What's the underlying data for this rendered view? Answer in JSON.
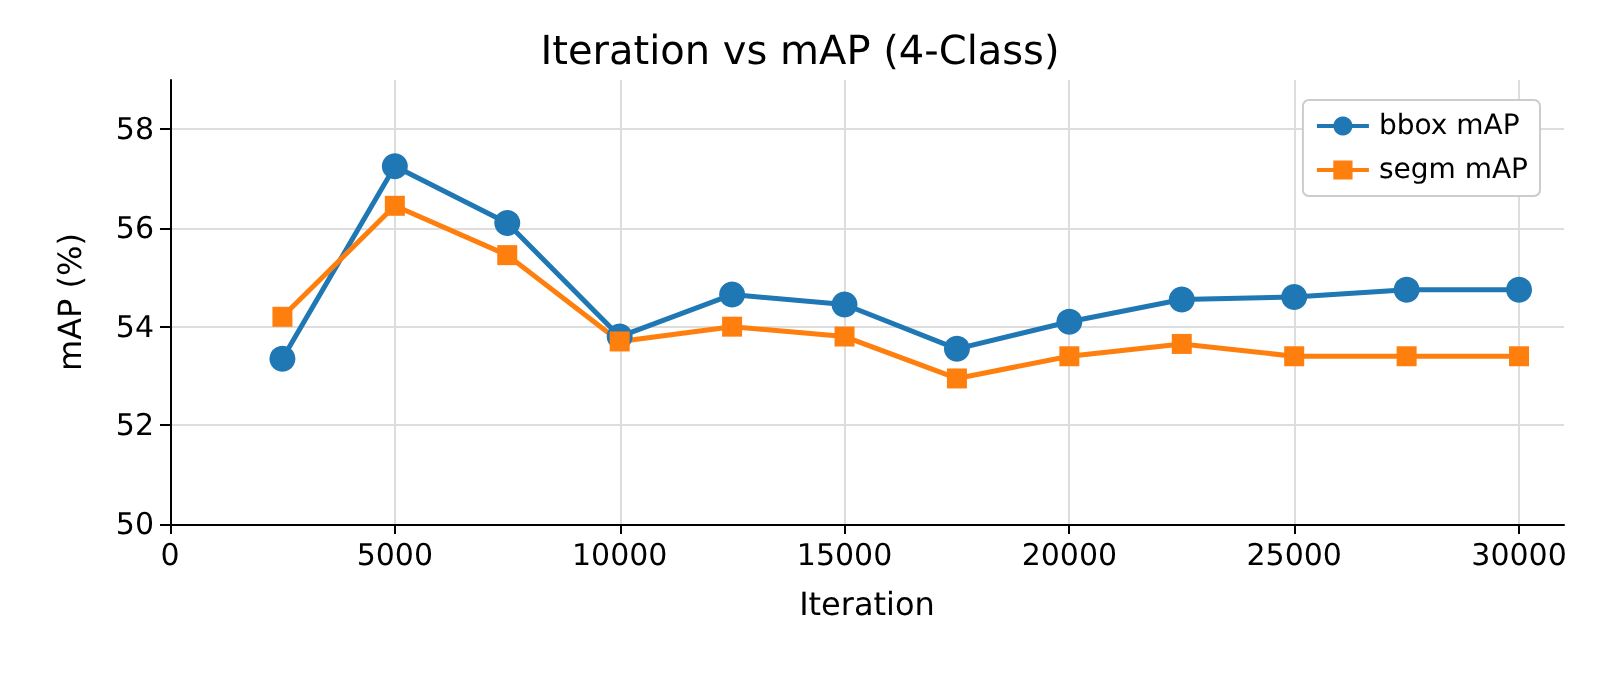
{
  "chart_data": {
    "type": "line",
    "title": "Iteration vs mAP (4-Class)",
    "xlabel": "Iteration",
    "ylabel": "mAP (%)",
    "x": [
      2500,
      5000,
      7500,
      10000,
      12500,
      15000,
      17500,
      20000,
      22500,
      25000,
      27500,
      30000
    ],
    "series": [
      {
        "name": "bbox mAP",
        "color": "#1f77b4",
        "marker": "circle",
        "values": [
          53.35,
          57.25,
          56.1,
          53.8,
          54.65,
          54.45,
          53.55,
          54.1,
          54.55,
          54.6,
          54.75,
          54.75
        ]
      },
      {
        "name": "segm mAP",
        "color": "#ff7f0e",
        "marker": "square",
        "values": [
          54.2,
          56.45,
          55.45,
          53.7,
          54.0,
          53.8,
          52.95,
          53.4,
          53.65,
          53.4,
          53.4,
          53.4
        ]
      }
    ],
    "xlim": [
      0,
      31000
    ],
    "xticks": [
      0,
      5000,
      10000,
      15000,
      20000,
      25000,
      30000
    ],
    "ylim": [
      50,
      59
    ],
    "yticks": [
      50,
      52,
      54,
      56,
      58
    ],
    "grid": true,
    "legend": "top right",
    "line_style": "solid"
  }
}
